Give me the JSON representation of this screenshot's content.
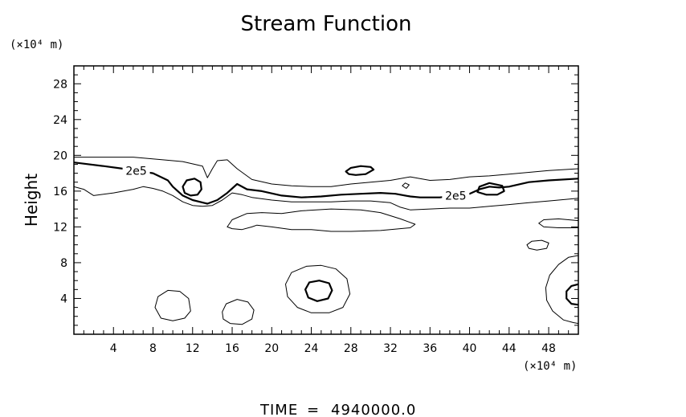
{
  "chart_data": {
    "type": "contour",
    "title": "Stream Function",
    "ylabel": "Height",
    "xlabel": "",
    "x_unit_label": "(×10⁴ m)",
    "y_unit_label": "(×10⁴ m)",
    "xlim": [
      0,
      51
    ],
    "ylim": [
      0,
      30
    ],
    "x_ticks": [
      4,
      8,
      12,
      16,
      20,
      24,
      28,
      32,
      36,
      40,
      44,
      48
    ],
    "y_ticks": [
      4,
      8,
      12,
      16,
      20,
      24,
      28
    ],
    "grid": false,
    "contour_labels": [
      {
        "text": "2e5",
        "x": 6.3,
        "y": 18.3
      },
      {
        "text": "2e5",
        "x": 38.6,
        "y": 15.5
      }
    ],
    "contours": [
      {
        "name": "outer-upper",
        "weight": "thin",
        "closed": false,
        "points": [
          [
            0,
            19.8
          ],
          [
            6,
            19.8
          ],
          [
            9,
            19.5
          ],
          [
            11,
            19.3
          ],
          [
            13,
            18.8
          ],
          [
            13.5,
            17.5
          ],
          [
            14,
            18.5
          ],
          [
            14.5,
            19.4
          ],
          [
            15.5,
            19.5
          ],
          [
            16.5,
            18.5
          ],
          [
            18,
            17.3
          ],
          [
            20,
            16.8
          ],
          [
            22,
            16.6
          ],
          [
            24,
            16.5
          ],
          [
            26,
            16.5
          ],
          [
            28,
            16.8
          ],
          [
            30,
            17.0
          ],
          [
            32,
            17.2
          ],
          [
            34,
            17.6
          ],
          [
            36,
            17.2
          ],
          [
            38,
            17.3
          ],
          [
            40,
            17.6
          ],
          [
            42,
            17.7
          ],
          [
            44,
            17.9
          ],
          [
            46,
            18.1
          ],
          [
            48,
            18.3
          ],
          [
            51,
            18.5
          ]
        ]
      },
      {
        "name": "main-2e5",
        "weight": "thick",
        "closed": false,
        "points": [
          [
            0,
            19.2
          ],
          [
            3,
            18.8
          ],
          [
            5,
            18.5
          ],
          [
            8,
            18.0
          ],
          [
            9.5,
            17.2
          ],
          [
            10,
            16.5
          ],
          [
            11,
            15.5
          ],
          [
            12,
            15.0
          ],
          [
            13.5,
            14.6
          ],
          [
            14.5,
            15.0
          ],
          [
            15.5,
            15.8
          ],
          [
            16.5,
            16.8
          ],
          [
            17.5,
            16.2
          ],
          [
            19,
            16.0
          ],
          [
            21,
            15.5
          ],
          [
            23,
            15.3
          ],
          [
            25,
            15.4
          ],
          [
            27,
            15.6
          ],
          [
            29,
            15.7
          ],
          [
            31,
            15.8
          ],
          [
            32.5,
            15.7
          ],
          [
            34,
            15.4
          ],
          [
            35,
            15.3
          ],
          [
            37,
            15.3
          ],
          [
            40,
            15.7
          ],
          [
            41,
            16.2
          ],
          [
            42,
            16.5
          ],
          [
            43,
            16.4
          ],
          [
            44,
            16.5
          ],
          [
            46,
            17.0
          ],
          [
            48,
            17.2
          ],
          [
            51,
            17.4
          ]
        ]
      },
      {
        "name": "outer-lower",
        "weight": "thin",
        "closed": false,
        "points": [
          [
            0,
            16.5
          ],
          [
            1,
            16.2
          ],
          [
            2,
            15.5
          ],
          [
            4,
            15.8
          ],
          [
            6,
            16.2
          ],
          [
            7,
            16.5
          ],
          [
            8,
            16.3
          ],
          [
            9,
            16.0
          ],
          [
            10,
            15.5
          ],
          [
            11,
            14.8
          ],
          [
            12,
            14.4
          ],
          [
            13,
            14.3
          ],
          [
            14,
            14.4
          ],
          [
            15,
            15.0
          ],
          [
            16,
            15.8
          ],
          [
            17,
            15.6
          ],
          [
            18,
            15.3
          ],
          [
            20,
            15.0
          ],
          [
            22,
            14.8
          ],
          [
            24,
            14.8
          ],
          [
            26,
            14.8
          ],
          [
            28,
            14.9
          ],
          [
            30,
            14.9
          ],
          [
            32,
            14.7
          ],
          [
            33,
            14.2
          ],
          [
            34,
            13.9
          ],
          [
            36,
            14.0
          ],
          [
            38,
            14.1
          ],
          [
            40,
            14.1
          ],
          [
            42,
            14.3
          ],
          [
            44,
            14.5
          ],
          [
            46,
            14.7
          ],
          [
            48,
            14.9
          ],
          [
            51,
            15.2
          ]
        ]
      },
      {
        "name": "band-closed",
        "weight": "thin",
        "closed": true,
        "points": [
          [
            15.5,
            12.0
          ],
          [
            16,
            12.8
          ],
          [
            17.5,
            13.5
          ],
          [
            19,
            13.6
          ],
          [
            21,
            13.5
          ],
          [
            23,
            13.8
          ],
          [
            26,
            14.0
          ],
          [
            29,
            13.9
          ],
          [
            31,
            13.6
          ],
          [
            33,
            12.9
          ],
          [
            34.5,
            12.3
          ],
          [
            34,
            11.9
          ],
          [
            31,
            11.6
          ],
          [
            28,
            11.5
          ],
          [
            26,
            11.5
          ],
          [
            24,
            11.7
          ],
          [
            22,
            11.7
          ],
          [
            20,
            12.0
          ],
          [
            18.5,
            12.2
          ],
          [
            18,
            12.0
          ],
          [
            17,
            11.7
          ],
          [
            16,
            11.8
          ]
        ]
      },
      {
        "name": "small-12-16",
        "weight": "thick",
        "closed": true,
        "points": [
          [
            11.0,
            16.5
          ],
          [
            11.4,
            17.2
          ],
          [
            12.2,
            17.4
          ],
          [
            12.8,
            17.0
          ],
          [
            12.9,
            16.2
          ],
          [
            12.5,
            15.6
          ],
          [
            11.8,
            15.5
          ],
          [
            11.2,
            15.8
          ]
        ]
      },
      {
        "name": "small-29-18",
        "weight": "thick",
        "closed": true,
        "points": [
          [
            27.5,
            18.2
          ],
          [
            28,
            18.6
          ],
          [
            29,
            18.8
          ],
          [
            30,
            18.7
          ],
          [
            30.3,
            18.4
          ],
          [
            29.5,
            17.9
          ],
          [
            28.5,
            17.8
          ],
          [
            27.8,
            17.9
          ]
        ]
      },
      {
        "name": "tiny-33-16",
        "weight": "thin",
        "closed": true,
        "points": [
          [
            33.2,
            16.6
          ],
          [
            33.5,
            16.9
          ],
          [
            33.9,
            16.7
          ],
          [
            33.6,
            16.3
          ]
        ]
      },
      {
        "name": "small-40-16",
        "weight": "thick",
        "closed": true,
        "points": [
          [
            40.8,
            15.9
          ],
          [
            41.0,
            16.5
          ],
          [
            42.0,
            16.9
          ],
          [
            43.3,
            16.6
          ],
          [
            43.5,
            16.0
          ],
          [
            42.8,
            15.6
          ],
          [
            41.7,
            15.6
          ]
        ]
      },
      {
        "name": "right-12",
        "weight": "thin",
        "closed": false,
        "points": [
          [
            51,
            12.7
          ],
          [
            49,
            12.9
          ],
          [
            47.5,
            12.8
          ],
          [
            47,
            12.4
          ],
          [
            47.5,
            12.0
          ],
          [
            49,
            11.9
          ],
          [
            51,
            11.9
          ]
        ]
      },
      {
        "name": "small-46-10",
        "weight": "thin",
        "closed": true,
        "points": [
          [
            45.8,
            10.0
          ],
          [
            46.3,
            10.4
          ],
          [
            47.3,
            10.5
          ],
          [
            48.0,
            10.2
          ],
          [
            47.8,
            9.6
          ],
          [
            46.8,
            9.4
          ],
          [
            46.0,
            9.6
          ]
        ]
      },
      {
        "name": "oval-10-3",
        "weight": "thin",
        "closed": true,
        "points": [
          [
            8.2,
            3.0
          ],
          [
            8.5,
            4.2
          ],
          [
            9.5,
            4.9
          ],
          [
            10.7,
            4.8
          ],
          [
            11.6,
            4.0
          ],
          [
            11.8,
            2.6
          ],
          [
            11.2,
            1.8
          ],
          [
            10,
            1.5
          ],
          [
            8.8,
            1.8
          ]
        ]
      },
      {
        "name": "oval-17-2",
        "weight": "thin",
        "closed": true,
        "points": [
          [
            15.0,
            2.5
          ],
          [
            15.4,
            3.4
          ],
          [
            16.5,
            3.9
          ],
          [
            17.6,
            3.6
          ],
          [
            18.2,
            2.7
          ],
          [
            18.0,
            1.7
          ],
          [
            17.0,
            1.1
          ],
          [
            15.8,
            1.2
          ],
          [
            15.1,
            1.7
          ]
        ]
      },
      {
        "name": "ring-25-outer",
        "weight": "thin",
        "closed": true,
        "points": [
          [
            21.4,
            5.6
          ],
          [
            22.0,
            6.9
          ],
          [
            23.5,
            7.6
          ],
          [
            25.0,
            7.7
          ],
          [
            26.5,
            7.3
          ],
          [
            27.6,
            6.2
          ],
          [
            27.9,
            4.5
          ],
          [
            27.2,
            3.0
          ],
          [
            25.8,
            2.4
          ],
          [
            24.0,
            2.4
          ],
          [
            22.6,
            3.0
          ],
          [
            21.6,
            4.2
          ]
        ]
      },
      {
        "name": "ring-25-inner",
        "weight": "thick",
        "closed": true,
        "points": [
          [
            23.4,
            5.0
          ],
          [
            23.8,
            5.8
          ],
          [
            24.8,
            6.0
          ],
          [
            25.8,
            5.7
          ],
          [
            26.1,
            4.9
          ],
          [
            25.7,
            4.0
          ],
          [
            24.6,
            3.7
          ],
          [
            23.7,
            4.1
          ]
        ]
      },
      {
        "name": "ring-51-outer",
        "weight": "thin",
        "closed": false,
        "points": [
          [
            51,
            8.8
          ],
          [
            50,
            8.6
          ],
          [
            49,
            7.8
          ],
          [
            48.1,
            6.6
          ],
          [
            47.7,
            5.2
          ],
          [
            47.8,
            3.8
          ],
          [
            48.4,
            2.6
          ],
          [
            49.5,
            1.6
          ],
          [
            50.5,
            1.3
          ],
          [
            51,
            1.2
          ]
        ]
      },
      {
        "name": "ring-51-inner",
        "weight": "thick",
        "closed": false,
        "points": [
          [
            51,
            5.6
          ],
          [
            50.3,
            5.4
          ],
          [
            49.8,
            4.8
          ],
          [
            49.8,
            4.0
          ],
          [
            50.3,
            3.4
          ],
          [
            51,
            3.3
          ]
        ]
      }
    ]
  },
  "footer": {
    "label": "TIME",
    "equals": "=",
    "value": "4940000.0"
  }
}
